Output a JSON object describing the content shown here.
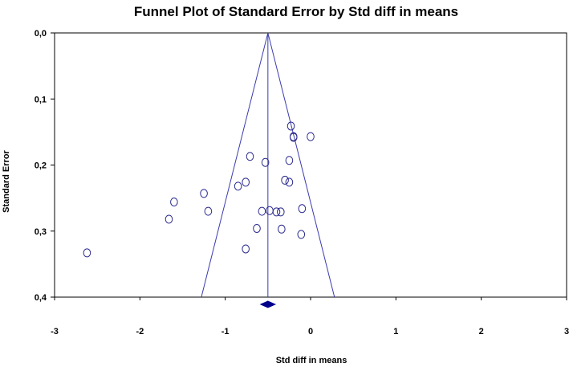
{
  "chart_data": {
    "type": "scatter",
    "title": "Funnel Plot of Standard Error by Std diff in means",
    "xlabel": "Std diff in means",
    "ylabel": "Standard Error",
    "xlim": [
      -3,
      3
    ],
    "ylim": [
      0.4,
      0.0
    ],
    "y_axis_inverted": true,
    "x_ticks": [
      {
        "value": -3,
        "label": "-3"
      },
      {
        "value": -2,
        "label": "-2"
      },
      {
        "value": -1,
        "label": "-1"
      },
      {
        "value": 0,
        "label": "0"
      },
      {
        "value": 1,
        "label": "1"
      },
      {
        "value": 2,
        "label": "2"
      },
      {
        "value": 3,
        "label": "3"
      }
    ],
    "y_ticks": [
      {
        "value": 0.0,
        "label": "0,0"
      },
      {
        "value": 0.1,
        "label": "0,1"
      },
      {
        "value": 0.2,
        "label": "0,2"
      },
      {
        "value": 0.3,
        "label": "0,3"
      },
      {
        "value": 0.4,
        "label": "0,4"
      }
    ],
    "pooled_estimate": -0.5,
    "funnel_bounds_at_max_se": [
      -1.28,
      0.28
    ],
    "grid": false,
    "legend": "none",
    "colors": {
      "points": "#2b2b8f",
      "funnel": "#3b3bb0",
      "diamond": "#00008b"
    },
    "points": [
      {
        "x": -2.62,
        "y": 0.333
      },
      {
        "x": -1.66,
        "y": 0.282
      },
      {
        "x": -1.6,
        "y": 0.256
      },
      {
        "x": -1.25,
        "y": 0.243
      },
      {
        "x": -1.2,
        "y": 0.27
      },
      {
        "x": -0.85,
        "y": 0.232
      },
      {
        "x": -0.76,
        "y": 0.226
      },
      {
        "x": -0.71,
        "y": 0.187
      },
      {
        "x": -0.76,
        "y": 0.327
      },
      {
        "x": -0.63,
        "y": 0.296
      },
      {
        "x": -0.57,
        "y": 0.27
      },
      {
        "x": -0.53,
        "y": 0.196
      },
      {
        "x": -0.48,
        "y": 0.269
      },
      {
        "x": -0.4,
        "y": 0.271
      },
      {
        "x": -0.35,
        "y": 0.271
      },
      {
        "x": -0.34,
        "y": 0.297
      },
      {
        "x": -0.3,
        "y": 0.223
      },
      {
        "x": -0.25,
        "y": 0.226
      },
      {
        "x": -0.25,
        "y": 0.193
      },
      {
        "x": -0.23,
        "y": 0.141
      },
      {
        "x": -0.2,
        "y": 0.158
      },
      {
        "x": -0.2,
        "y": 0.157
      },
      {
        "x": -0.11,
        "y": 0.305
      },
      {
        "x": -0.1,
        "y": 0.266
      },
      {
        "x": 0.0,
        "y": 0.157
      }
    ]
  }
}
